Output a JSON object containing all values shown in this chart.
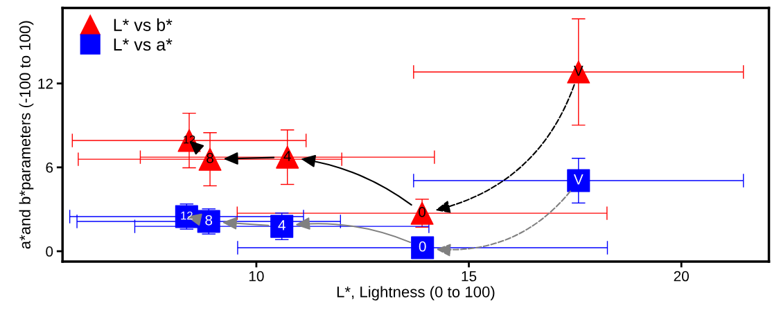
{
  "chart_data": {
    "type": "scatter",
    "xlabel": "L*, Lightness (0 to 100)",
    "ylabel": "a*and b*parameters (-100 to 100)",
    "xlim": [
      5.44,
      22.06
    ],
    "ylim": [
      -0.74,
      17.4
    ],
    "xticks": [
      10,
      15,
      20
    ],
    "yticks": [
      0,
      6,
      12
    ],
    "grid": false,
    "legend": "top left",
    "series": [
      {
        "name": "L* vs b*",
        "color": "#ff0000",
        "marker": "triangle",
        "x": [
          17.58,
          13.9,
          10.73,
          8.91,
          8.42
        ],
        "values": [
          12.82,
          2.72,
          6.73,
          6.58,
          7.92
        ],
        "xerrors": [
          3.88,
          4.35,
          3.46,
          3.1,
          2.75
        ],
        "errors": [
          3.8,
          1.0,
          1.95,
          1.9,
          1.95
        ]
      },
      {
        "name": "L* vs a*",
        "color": "#0000ff",
        "marker": "square",
        "x": [
          17.58,
          13.91,
          10.6,
          8.88,
          8.36
        ],
        "values": [
          5.05,
          0.25,
          1.78,
          2.13,
          2.48
        ],
        "xerrors": [
          3.88,
          4.35,
          3.46,
          3.1,
          2.75
        ],
        "errors": [
          1.6,
          0.2,
          0.95,
          0.9,
          0.9
        ]
      }
    ],
    "annotations": [
      {
        "text": "V",
        "x": 17.58,
        "y": 12.82
      },
      {
        "text": "0",
        "x": 13.9,
        "y": 2.72
      },
      {
        "text": "4",
        "x": 10.73,
        "y": 6.73
      },
      {
        "text": "8",
        "x": 8.91,
        "y": 6.58
      },
      {
        "text": "12",
        "x": 8.42,
        "y": 7.92
      },
      {
        "text": "V",
        "x": 17.58,
        "y": 5.05
      },
      {
        "text": "0",
        "x": 13.91,
        "y": 0.25
      },
      {
        "text": "4",
        "x": 10.6,
        "y": 1.78
      },
      {
        "text": "8",
        "x": 8.88,
        "y": 2.13
      },
      {
        "text": "12",
        "x": 8.36,
        "y": 2.48
      }
    ]
  }
}
